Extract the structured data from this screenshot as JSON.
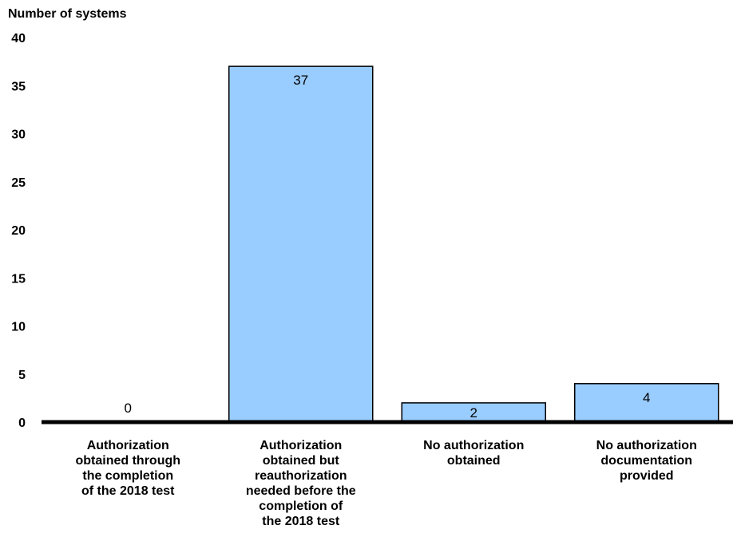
{
  "chart_data": {
    "type": "bar",
    "ylabel": "Number of systems",
    "ylim": [
      0,
      40
    ],
    "yticks": [
      0,
      5,
      10,
      15,
      20,
      25,
      30,
      35,
      40
    ],
    "categories": [
      [
        "Authorization",
        "obtained through",
        "the completion",
        "of the 2018 test"
      ],
      [
        "Authorization",
        "obtained but",
        "reauthorization",
        "needed before the",
        "completion of",
        "the 2018 test"
      ],
      [
        "No authorization",
        "obtained"
      ],
      [
        "No authorization",
        "documentation",
        "provided"
      ]
    ],
    "values": [
      0,
      37,
      2,
      4
    ],
    "bar_color": "#99ccff",
    "grid": false
  }
}
